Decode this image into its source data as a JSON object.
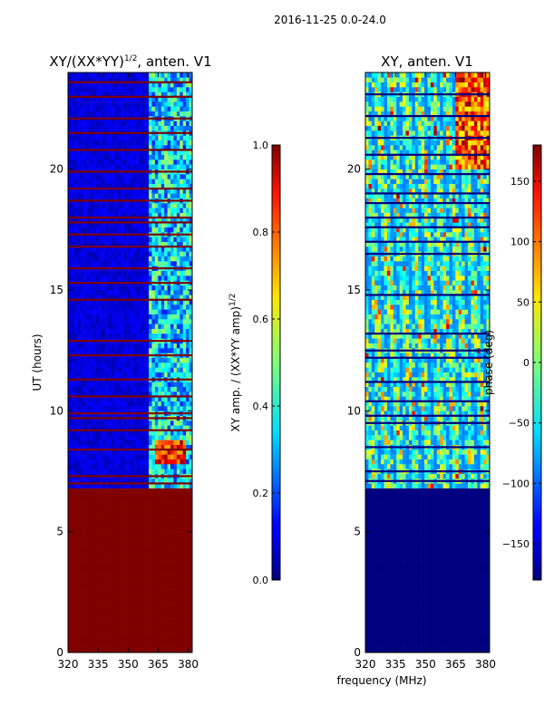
{
  "figure": {
    "suptitle": "2016-11-25 0.0-24.0",
    "xlabel": "frequency (MHz)"
  },
  "chart_data": [
    {
      "type": "heatmap",
      "title_prefix": "XY/(XX*YY)",
      "title_sup": "1/2",
      "title_suffix": ", anten. V1",
      "ylabel": "UT (hours)",
      "xlim": [
        320,
        382
      ],
      "ylim": [
        0,
        24
      ],
      "xticks": [
        320,
        335,
        350,
        365,
        380
      ],
      "yticks": [
        0,
        5,
        10,
        15,
        20
      ],
      "colorbar": {
        "label_prefix": "XY amp. / (XX*YY amp)",
        "label_sup": "1/2",
        "range": [
          0.0,
          1.0
        ],
        "ticks": [
          "0.0",
          "0.2",
          "0.4",
          "0.6",
          "0.8",
          "1.0"
        ],
        "tick_values": [
          0.0,
          0.2,
          0.4,
          0.6,
          0.8,
          1.0
        ],
        "colormap": "jet"
      },
      "regions": [
        {
          "ut_range": [
            0,
            6.8
          ],
          "freq_range": [
            320,
            382
          ],
          "value": 1.0,
          "note": "saturated (flagged)"
        },
        {
          "ut_range": [
            6.8,
            24
          ],
          "freq_range": [
            320,
            360
          ],
          "value": 0.08
        },
        {
          "ut_range": [
            6.8,
            24
          ],
          "freq_range": [
            360,
            382
          ],
          "value_range": [
            0.1,
            0.55
          ]
        },
        {
          "ut_range": [
            7.8,
            8.8
          ],
          "freq_range": [
            364,
            379
          ],
          "value_range": [
            0.7,
            1.0
          ]
        }
      ],
      "flagged_rows_ut": [
        7.0,
        7.3,
        8.4,
        9.2,
        9.7,
        9.9,
        10.6,
        11.3,
        12.3,
        12.9,
        14.6,
        15.3,
        15.9,
        16.8,
        17.3,
        17.8,
        18.0,
        18.7,
        19.2,
        19.9,
        20.8,
        21.5,
        22.1,
        23.0,
        23.6
      ]
    },
    {
      "type": "heatmap",
      "title": "XY, anten. V1",
      "ylabel": "",
      "xlim": [
        320,
        382
      ],
      "ylim": [
        0,
        24
      ],
      "xticks": [
        320,
        335,
        350,
        365,
        380
      ],
      "yticks": [
        0,
        5,
        10,
        15,
        20
      ],
      "colorbar": {
        "label": "phase (deg)",
        "range": [
          -180,
          180
        ],
        "ticks": [
          "−150",
          "−100",
          "−50",
          "0",
          "50",
          "100",
          "150"
        ],
        "tick_values": [
          -150,
          -100,
          -50,
          0,
          50,
          100,
          150
        ],
        "colormap": "jet"
      },
      "regions": [
        {
          "ut_range": [
            0,
            6.8
          ],
          "freq_range": [
            320,
            382
          ],
          "value": -180,
          "note": "flagged"
        },
        {
          "ut_range": [
            6.8,
            24
          ],
          "freq_range": [
            320,
            382
          ],
          "value_range": [
            -180,
            180
          ],
          "note": "noisy phase"
        }
      ],
      "flagged_rows_ut": [
        7.1,
        7.5,
        8.5,
        9.5,
        9.8,
        10.4,
        11.2,
        12.2,
        12.5,
        13.2,
        14.8,
        16.5,
        17.0,
        17.6,
        18.0,
        18.6,
        19.0,
        19.8,
        20.6,
        21.3,
        22.2,
        23.1
      ]
    }
  ]
}
